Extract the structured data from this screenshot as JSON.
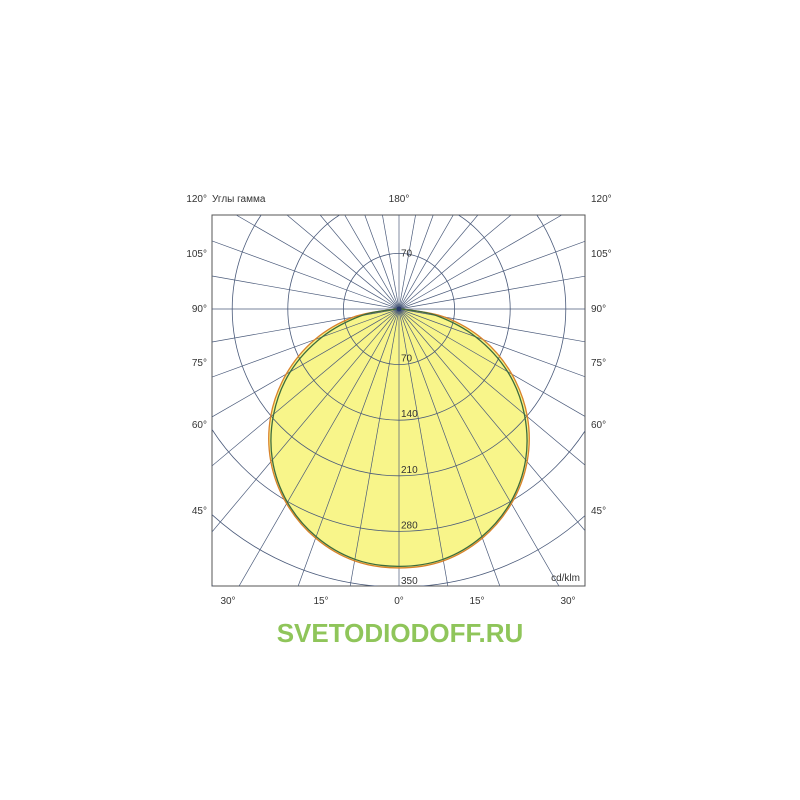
{
  "chart_data": {
    "type": "polar",
    "title": "Углы гамма",
    "unit_label": "cd/klm",
    "radial_ticks": [
      70,
      140,
      210,
      280,
      350
    ],
    "top_tick_label": "70",
    "angle_labels_left": [
      "120°",
      "105°",
      "90°",
      "75°",
      "60°",
      "45°"
    ],
    "angle_labels_right": [
      "120°",
      "105°",
      "90°",
      "75°",
      "60°",
      "45°"
    ],
    "top_label": "180°",
    "bottom_labels": [
      "30°",
      "15°",
      "0°",
      "15°",
      "30°"
    ],
    "angles_deg": [
      0,
      10,
      20,
      30,
      40,
      50,
      60,
      70,
      80,
      90
    ],
    "series": [
      {
        "values": [
          326,
          322,
          307,
          283,
          251,
          211,
          164,
          113,
          58,
          4
        ],
        "color": "#d9822b"
      },
      {
        "values": [
          324,
          320,
          305,
          281,
          248,
          206,
          158,
          103,
          48,
          3
        ],
        "color": "#3d6b3d"
      }
    ],
    "fill_color": "#f8f58a",
    "grid_color": "#4a5a7a"
  },
  "watermark": "SVETODIODOFF.RU"
}
